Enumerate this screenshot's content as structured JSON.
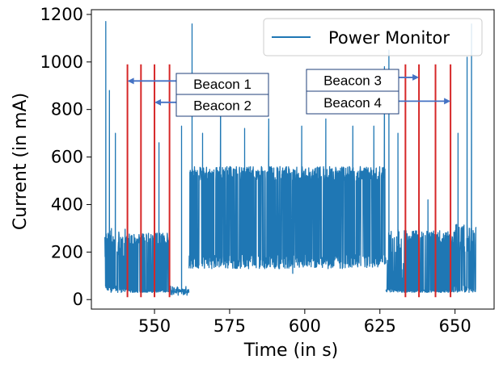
{
  "chart_data": {
    "type": "line",
    "title": "",
    "xlabel": "Time (in s)",
    "ylabel": "Current (in mA)",
    "xlim": [
      529,
      663
    ],
    "ylim": [
      -40,
      1220
    ],
    "xticks": [
      550,
      575,
      600,
      625,
      650
    ],
    "yticks": [
      0,
      200,
      400,
      600,
      800,
      1000,
      1200
    ],
    "legend": {
      "position": "top-right",
      "entries": [
        "Power Monitor"
      ]
    },
    "colors": {
      "series": "#1f77b4",
      "markers": "#d62728",
      "annotation_border": "#1f3f7a",
      "arrow": "#4472c4"
    },
    "series": [
      {
        "name": "Power Monitor",
        "segments": [
          {
            "t_start": 533.5,
            "t_end": 541,
            "state": "active_low",
            "low": 30,
            "high": 300,
            "spikes": [
              [
                533.8,
                1170
              ],
              [
                535,
                880
              ],
              [
                537,
                700
              ]
            ]
          },
          {
            "t_start": 541,
            "t_end": 555,
            "state": "advertising",
            "baseline": 30,
            "plateau": 280,
            "dips": [
              [
                545.5,
                35
              ],
              [
                547,
                40
              ],
              [
                550,
                15
              ],
              [
                552,
                40
              ]
            ],
            "spikes": [
              [
                545.5,
                500
              ],
              [
                551.5,
                660
              ]
            ]
          },
          {
            "t_start": 555,
            "t_end": 561.5,
            "state": "idle",
            "baseline": 30,
            "plateau": 60,
            "spikes": [
              [
                559,
                730
              ]
            ]
          },
          {
            "t_start": 561.5,
            "t_end": 627,
            "state": "connected",
            "low": 130,
            "high": 560,
            "spikes": [
              [
                562.5,
                1160
              ],
              [
                566,
                700
              ],
              [
                572,
                950
              ],
              [
                580,
                720
              ],
              [
                588,
                760
              ],
              [
                599,
                730
              ],
              [
                607,
                760
              ],
              [
                616,
                730
              ],
              [
                623,
                730
              ],
              [
                626.5,
                980
              ]
            ],
            "dips": [
              [
                596,
                110
              ]
            ]
          },
          {
            "t_start": 627,
            "t_end": 633,
            "state": "idle",
            "baseline": 30,
            "plateau": 300,
            "spikes": [
              [
                628,
                1050
              ],
              [
                631,
                700
              ]
            ]
          },
          {
            "t_start": 633,
            "t_end": 649,
            "state": "advertising",
            "baseline": 30,
            "plateau": 290,
            "dips": [
              [
                637,
                35
              ],
              [
                642,
                35
              ],
              [
                646,
                35
              ]
            ],
            "spikes": [
              [
                638,
                470
              ],
              [
                641,
                420
              ]
            ]
          },
          {
            "t_start": 649,
            "t_end": 657,
            "state": "active_low",
            "low": 30,
            "high": 320,
            "spikes": [
              [
                651,
                700
              ],
              [
                654,
                1020
              ],
              [
                655.5,
                1160
              ]
            ]
          }
        ]
      }
    ],
    "markers": [
      {
        "label": "beacon-line",
        "x": 541
      },
      {
        "label": "beacon-line",
        "x": 545.5
      },
      {
        "label": "beacon-line",
        "x": 550
      },
      {
        "label": "beacon-line",
        "x": 555
      },
      {
        "label": "beacon-line",
        "x": 633.5
      },
      {
        "label": "beacon-line",
        "x": 638
      },
      {
        "label": "beacon-line",
        "x": 643.5
      },
      {
        "label": "beacon-line",
        "x": 648.5
      }
    ],
    "annotations": [
      {
        "text": "Beacon 1",
        "arrow_to_x": 541,
        "arrow_y": 920
      },
      {
        "text": "Beacon 2",
        "arrow_to_x": 550,
        "arrow_y": 830
      },
      {
        "text": "Beacon 3",
        "arrow_to_x": 638,
        "arrow_y": 935
      },
      {
        "text": "Beacon 4",
        "arrow_to_x": 648.5,
        "arrow_y": 835
      }
    ]
  }
}
